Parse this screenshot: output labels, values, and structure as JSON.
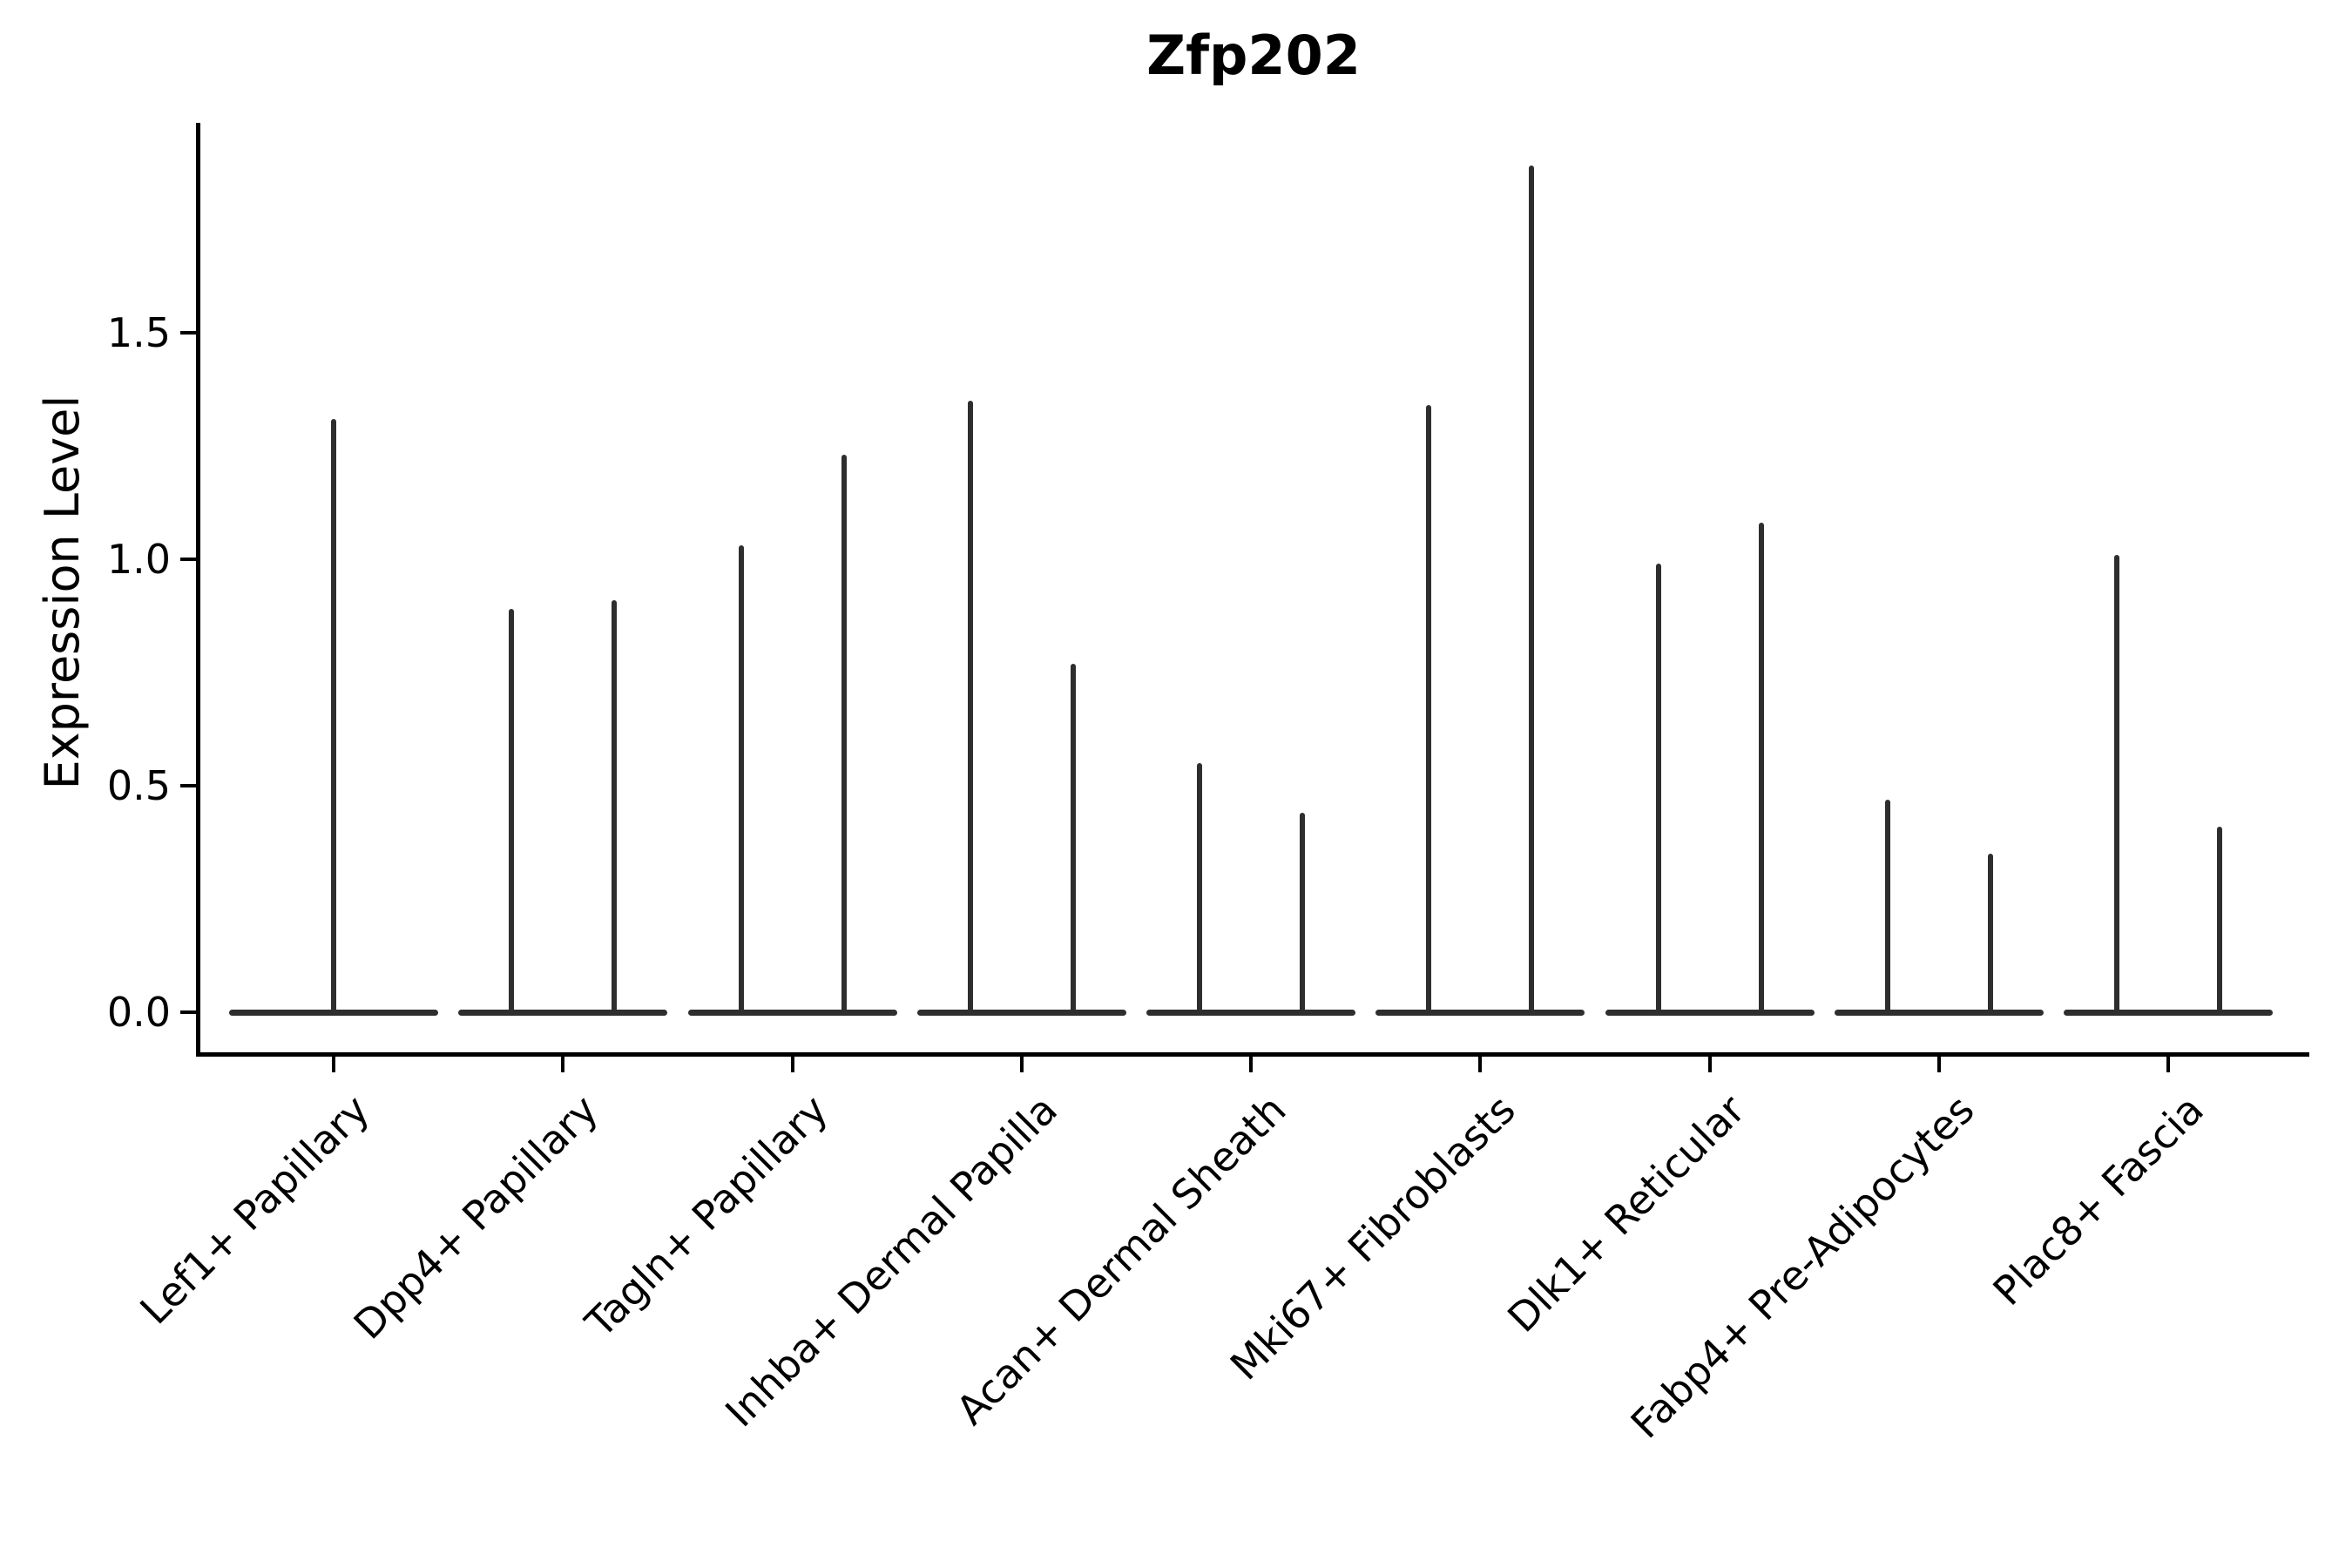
{
  "title": "Zfp202",
  "y_axis": {
    "label": "Expression Level",
    "tick_labels": [
      "0.0",
      "0.5",
      "1.0",
      "1.5"
    ]
  },
  "chart_data": {
    "type": "violin",
    "title": "Zfp202",
    "xlabel": "",
    "ylabel": "Expression Level",
    "yticks": [
      0.0,
      0.5,
      1.0,
      1.5
    ],
    "ytick_labels": [
      "0.0",
      "0.5",
      "1.0",
      "1.5"
    ],
    "ylim": [
      -0.09,
      1.96
    ],
    "grid": false,
    "legend": null,
    "categories": [
      "Lef1+ Papillary",
      "Dpp4+ Papillary",
      "Tagln+ Papillary",
      "Inhba+ Dermal Papilla",
      "Acan+ Dermal Sheath",
      "Mki67+ Fibroblasts",
      "Dlk1+ Reticular",
      "Fabp4+ Pre-Adipocytes",
      "Plac8+ Fascia"
    ],
    "violin_max_values": [
      [
        1.31
      ],
      [
        0.89,
        0.91
      ],
      [
        1.03,
        1.23
      ],
      [
        1.35,
        0.77
      ],
      [
        0.55,
        0.44
      ],
      [
        1.34,
        1.87
      ],
      [
        0.99,
        1.08
      ],
      [
        0.47,
        0.35
      ],
      [
        1.01,
        0.41
      ]
    ],
    "distribution_shape": "Each violin is collapsed to a flat horizontal base at expression 0 with a single thin vertical spike reaching its maximum expression value; categories with two violins show two spikes over a shared base line.",
    "violin_color": "#2e2e2e",
    "axis_color": "#000000",
    "background_color": "#ffffff"
  }
}
